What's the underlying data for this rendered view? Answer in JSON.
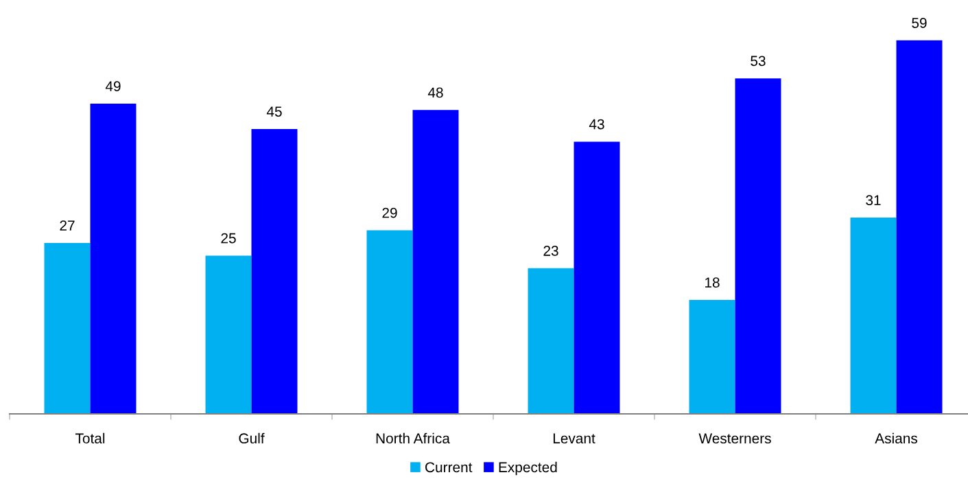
{
  "chart_data": {
    "type": "bar",
    "categories": [
      "Total",
      "Gulf",
      "North Africa",
      "Levant",
      "Westerners",
      "Asians"
    ],
    "series": [
      {
        "name": "Current",
        "color": "#00b0f0",
        "values": [
          27,
          25,
          29,
          23,
          18,
          31
        ]
      },
      {
        "name": "Expected",
        "color": "#0000ff",
        "values": [
          49,
          45,
          48,
          43,
          53,
          59
        ]
      }
    ],
    "data_labels": true,
    "legend": "bottom",
    "grid": false
  }
}
